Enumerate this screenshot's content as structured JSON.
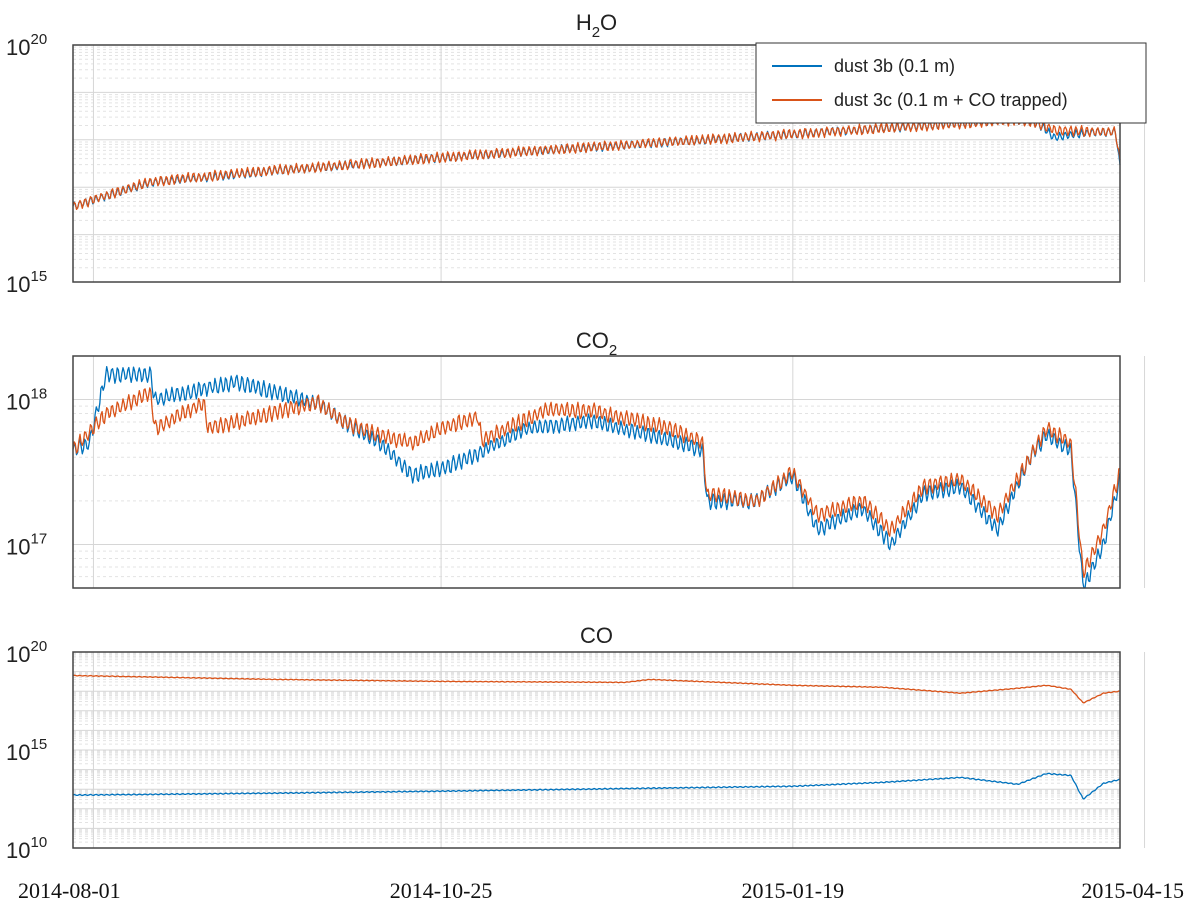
{
  "colors": {
    "dust_3b": "#0072BD",
    "dust_3c": "#D95319"
  },
  "x_tick_labels": [
    "2014-08-01",
    "2014-10-25",
    "2015-01-19",
    "2015-04-15"
  ],
  "legend": {
    "entries": [
      "dust 3b (0.1 m)",
      "dust 3c (0.1 m + CO trapped)"
    ],
    "placement": "top-right of first panel"
  },
  "chart_data": [
    {
      "type": "line",
      "title": "H2O",
      "title_base": "H",
      "title_sub": "2",
      "title_rest": "O",
      "xlabel": "",
      "ylabel": "",
      "x_domain": [
        "2014-07-27",
        "2015-04-09"
      ],
      "y_scale": "log",
      "ylim_exp": [
        15,
        20
      ],
      "ytick_exponents": [
        15,
        20
      ],
      "series": [
        {
          "name": "dust 3b (0.1 m)",
          "color": "#0072BD",
          "x": [
            "2014-07-27",
            "2014-08-15",
            "2014-09-15",
            "2014-10-15",
            "2014-10-25",
            "2014-11-15",
            "2014-12-15",
            "2015-01-19",
            "2015-02-15",
            "2015-03-15",
            "2015-03-20",
            "2015-03-24",
            "2015-04-01",
            "2015-04-08",
            "2015-04-09"
          ],
          "y_exp": [
            16.6,
            17.1,
            17.35,
            17.55,
            17.62,
            17.75,
            17.92,
            18.12,
            18.27,
            18.42,
            18.35,
            18.05,
            18.15,
            18.17,
            17.4
          ],
          "oscillation_exp": 0.1
        },
        {
          "name": "dust 3c (0.1 m + CO trapped)",
          "color": "#D95319",
          "x": [
            "2014-07-27",
            "2014-08-15",
            "2014-09-15",
            "2014-10-15",
            "2014-10-25",
            "2014-11-15",
            "2014-12-15",
            "2015-01-19",
            "2015-02-15",
            "2015-03-15",
            "2015-03-20",
            "2015-03-24",
            "2015-04-01",
            "2015-04-08",
            "2015-04-09"
          ],
          "y_exp": [
            16.6,
            17.12,
            17.36,
            17.56,
            17.63,
            17.76,
            17.93,
            18.12,
            18.27,
            18.42,
            18.36,
            18.2,
            18.18,
            18.17,
            17.5
          ],
          "oscillation_exp": 0.12
        }
      ]
    },
    {
      "type": "line",
      "title": "CO2",
      "title_base": "CO",
      "title_sub": "2",
      "title_rest": "",
      "xlabel": "",
      "ylabel": "",
      "x_domain": [
        "2014-07-27",
        "2015-04-09"
      ],
      "y_scale": "log",
      "ylim_exp": [
        16.7,
        18.3
      ],
      "ytick_exponents": [
        17,
        18
      ],
      "series": [
        {
          "name": "dust 3b (0.1 m)",
          "color": "#0072BD",
          "x": [
            "2014-07-27",
            "2014-07-31",
            "2014-08-04",
            "2014-08-15",
            "2014-08-16",
            "2014-09-05",
            "2014-09-25",
            "2014-10-01",
            "2014-10-10",
            "2014-10-18",
            "2014-10-25",
            "2014-11-01",
            "2014-11-15",
            "2014-12-01",
            "2014-12-20",
            "2014-12-28",
            "2014-12-29",
            "2015-01-10",
            "2015-01-19",
            "2015-01-25",
            "2015-02-05",
            "2015-02-12",
            "2015-02-20",
            "2015-03-01",
            "2015-03-10",
            "2015-03-18",
            "2015-03-22",
            "2015-03-28",
            "2015-03-31",
            "2015-04-05",
            "2015-04-09"
          ],
          "y_exp": [
            17.65,
            17.7,
            18.17,
            18.17,
            18.0,
            18.12,
            17.97,
            17.85,
            17.7,
            17.48,
            17.52,
            17.6,
            17.8,
            17.85,
            17.72,
            17.65,
            17.3,
            17.3,
            17.48,
            17.1,
            17.25,
            17.0,
            17.35,
            17.4,
            17.1,
            17.6,
            17.75,
            17.65,
            16.7,
            17.0,
            17.45
          ],
          "oscillation_exp": 0.06
        },
        {
          "name": "dust 3c (0.1 m + CO trapped)",
          "color": "#D95319",
          "x": [
            "2014-07-27",
            "2014-08-04",
            "2014-08-15",
            "2014-08-16",
            "2014-08-28",
            "2014-08-29",
            "2014-09-25",
            "2014-10-01",
            "2014-10-10",
            "2014-10-18",
            "2014-10-25",
            "2014-11-03",
            "2014-11-04",
            "2014-11-20",
            "2014-12-01",
            "2014-12-20",
            "2014-12-28",
            "2014-12-29",
            "2015-01-10",
            "2015-01-19",
            "2015-01-25",
            "2015-02-05",
            "2015-02-12",
            "2015-02-20",
            "2015-03-01",
            "2015-03-10",
            "2015-03-18",
            "2015-03-22",
            "2015-03-28",
            "2015-03-31",
            "2015-04-05",
            "2015-04-09"
          ],
          "y_exp": [
            17.65,
            17.9,
            18.05,
            17.8,
            17.98,
            17.8,
            17.98,
            17.85,
            17.75,
            17.7,
            17.8,
            17.88,
            17.72,
            17.93,
            17.92,
            17.8,
            17.7,
            17.35,
            17.3,
            17.5,
            17.2,
            17.3,
            17.1,
            17.4,
            17.45,
            17.2,
            17.6,
            17.8,
            17.7,
            16.8,
            17.1,
            17.5
          ],
          "oscillation_exp": 0.06
        }
      ]
    },
    {
      "type": "line",
      "title": "CO",
      "title_base": "CO",
      "title_sub": "",
      "title_rest": "",
      "xlabel": "",
      "ylabel": "",
      "x_domain": [
        "2014-07-27",
        "2015-04-09"
      ],
      "y_scale": "log",
      "ylim_exp": [
        10,
        20
      ],
      "ytick_exponents": [
        10,
        15,
        20
      ],
      "series": [
        {
          "name": "dust 3b (0.1 m)",
          "color": "#0072BD",
          "x": [
            "2014-07-27",
            "2014-09-15",
            "2014-10-25",
            "2014-12-15",
            "2015-01-19",
            "2015-02-10",
            "2015-03-01",
            "2015-03-15",
            "2015-03-22",
            "2015-03-28",
            "2015-03-31",
            "2015-04-05",
            "2015-04-09"
          ],
          "y_exp": [
            12.7,
            12.8,
            12.9,
            13.05,
            13.15,
            13.35,
            13.6,
            13.25,
            13.8,
            13.7,
            12.5,
            13.3,
            13.5
          ],
          "oscillation_exp": 0.03
        },
        {
          "name": "dust 3c (0.1 m + CO trapped)",
          "color": "#D95319",
          "x": [
            "2014-07-27",
            "2014-09-15",
            "2014-10-25",
            "2014-12-09",
            "2014-12-15",
            "2015-01-19",
            "2015-02-10",
            "2015-03-01",
            "2015-03-15",
            "2015-03-22",
            "2015-03-28",
            "2015-03-31",
            "2015-04-05",
            "2015-04-09"
          ],
          "y_exp": [
            18.8,
            18.6,
            18.5,
            18.45,
            18.6,
            18.3,
            18.2,
            17.9,
            18.15,
            18.3,
            18.1,
            17.4,
            17.9,
            18.0
          ],
          "oscillation_exp": 0.02
        }
      ]
    }
  ]
}
